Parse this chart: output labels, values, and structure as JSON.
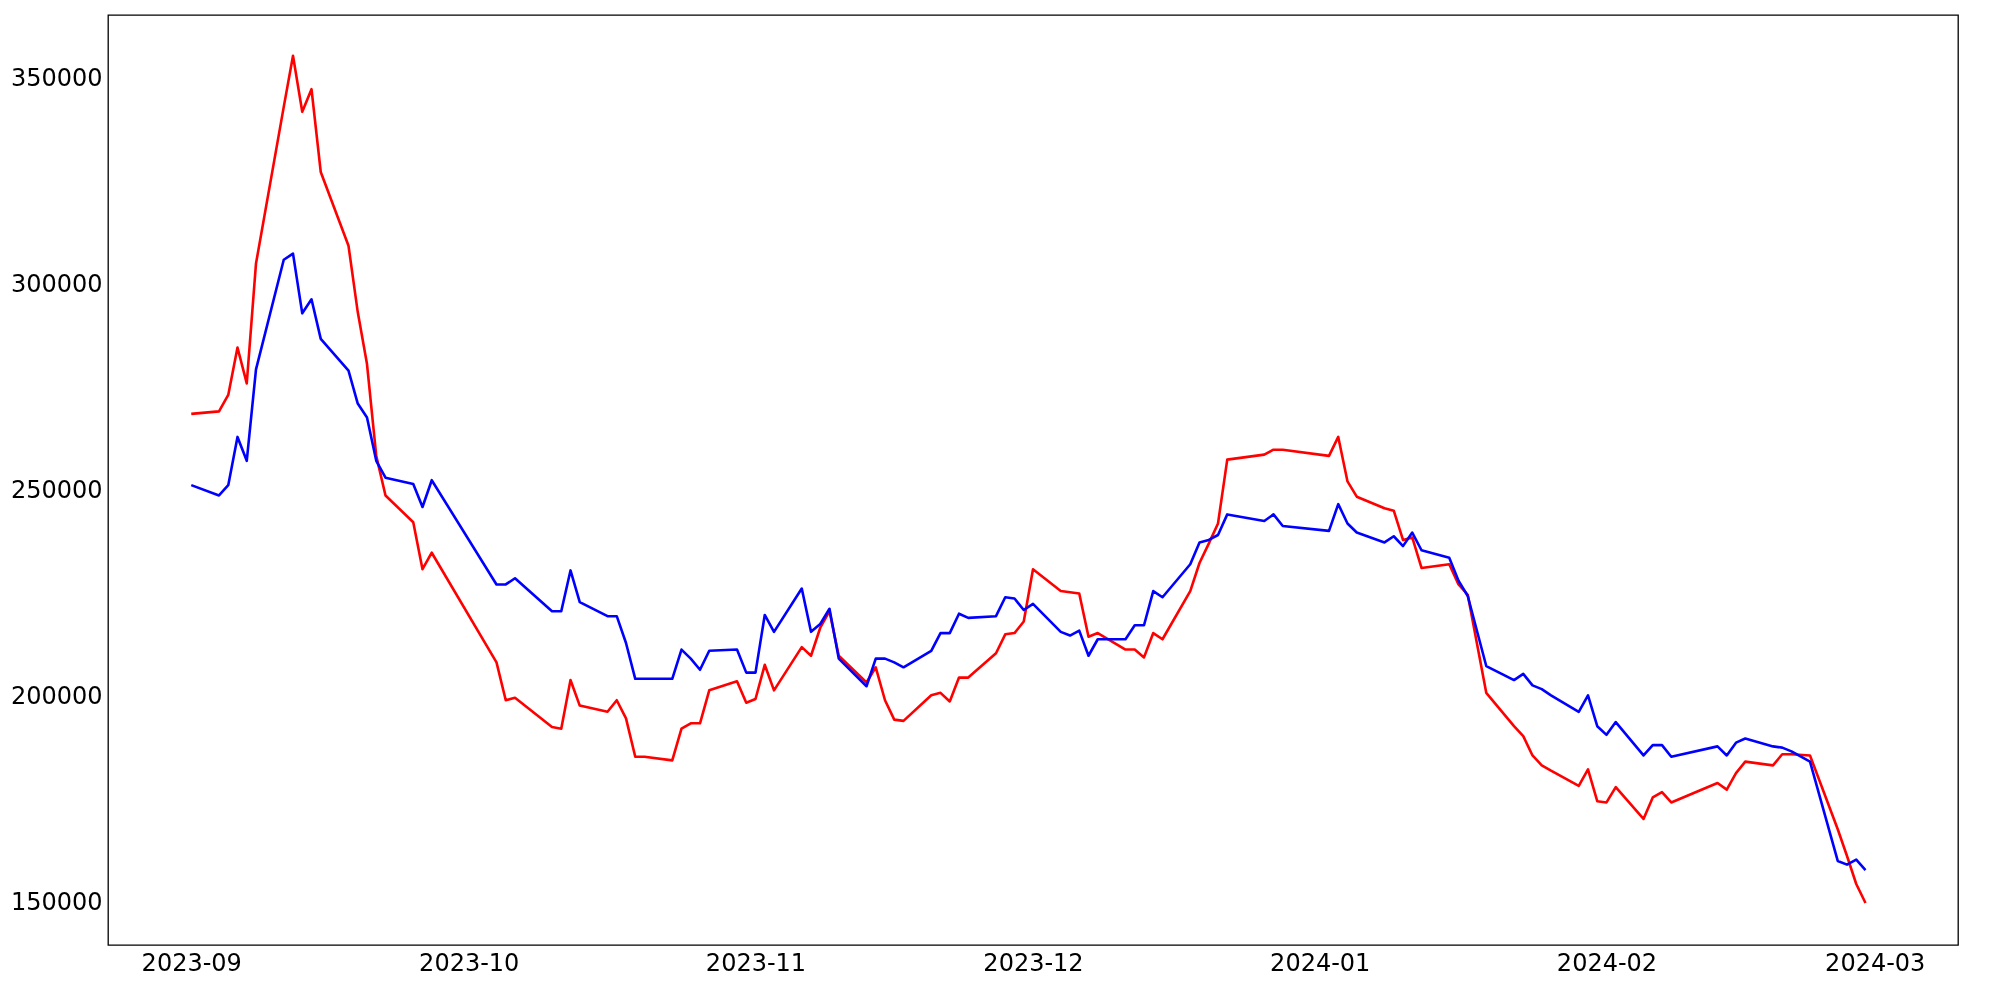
{
  "chart_data": {
    "type": "line",
    "x": [
      "2023-09-01",
      "2023-09-04",
      "2023-09-05",
      "2023-09-06",
      "2023-09-07",
      "2023-09-08",
      "2023-09-11",
      "2023-09-12",
      "2023-09-13",
      "2023-09-14",
      "2023-09-15",
      "2023-09-18",
      "2023-09-19",
      "2023-09-20",
      "2023-09-21",
      "2023-09-22",
      "2023-09-25",
      "2023-09-26",
      "2023-09-27",
      "2023-10-04",
      "2023-10-05",
      "2023-10-06",
      "2023-10-10",
      "2023-10-11",
      "2023-10-12",
      "2023-10-13",
      "2023-10-16",
      "2023-10-17",
      "2023-10-18",
      "2023-10-19",
      "2023-10-20",
      "2023-10-23",
      "2023-10-24",
      "2023-10-25",
      "2023-10-26",
      "2023-10-27",
      "2023-10-30",
      "2023-10-31",
      "2023-11-01",
      "2023-11-02",
      "2023-11-03",
      "2023-11-06",
      "2023-11-07",
      "2023-11-08",
      "2023-11-09",
      "2023-11-10",
      "2023-11-13",
      "2023-11-14",
      "2023-11-15",
      "2023-11-16",
      "2023-11-17",
      "2023-11-20",
      "2023-11-21",
      "2023-11-22",
      "2023-11-23",
      "2023-11-24",
      "2023-11-27",
      "2023-11-28",
      "2023-11-29",
      "2023-11-30",
      "2023-12-01",
      "2023-12-04",
      "2023-12-05",
      "2023-12-06",
      "2023-12-07",
      "2023-12-08",
      "2023-12-11",
      "2023-12-12",
      "2023-12-13",
      "2023-12-14",
      "2023-12-15",
      "2023-12-18",
      "2023-12-19",
      "2023-12-20",
      "2023-12-21",
      "2023-12-22",
      "2023-12-26",
      "2023-12-27",
      "2023-12-28",
      "2024-01-02",
      "2024-01-03",
      "2024-01-04",
      "2024-01-05",
      "2024-01-08",
      "2024-01-09",
      "2024-01-10",
      "2024-01-11",
      "2024-01-12",
      "2024-01-15",
      "2024-01-16",
      "2024-01-17",
      "2024-01-19",
      "2024-01-22",
      "2024-01-23",
      "2024-01-24",
      "2024-01-25",
      "2024-01-26",
      "2024-01-29",
      "2024-01-30",
      "2024-01-31",
      "2024-02-01",
      "2024-02-02",
      "2024-02-05",
      "2024-02-06",
      "2024-02-07",
      "2024-02-08",
      "2024-02-13",
      "2024-02-14",
      "2024-02-15",
      "2024-02-16",
      "2024-02-19",
      "2024-02-20",
      "2024-02-21",
      "2024-02-23",
      "2024-02-26",
      "2024-02-27",
      "2024-02-28",
      "2024-02-29"
    ],
    "series": [
      {
        "color": "#ff0000",
        "values": [
          268700,
          269300,
          273300,
          284800,
          276100,
          305200,
          343200,
          355600,
          342000,
          347500,
          327400,
          309500,
          293400,
          280800,
          258500,
          248900,
          242400,
          231000,
          235000,
          208400,
          199200,
          199800,
          192700,
          192300,
          204100,
          197900,
          196400,
          199200,
          194800,
          185500,
          185500,
          184600,
          192300,
          193600,
          193600,
          201600,
          203800,
          198600,
          199500,
          207800,
          201600,
          212100,
          210000,
          216800,
          220800,
          210000,
          203500,
          207200,
          199200,
          194500,
          194200,
          200400,
          201000,
          198900,
          204700,
          204700,
          210600,
          215200,
          215500,
          218300,
          231000,
          225700,
          225400,
          225100,
          214600,
          215500,
          211500,
          211500,
          209600,
          215500,
          214000,
          225700,
          232500,
          237200,
          242100,
          257600,
          258800,
          260000,
          260000,
          258500,
          263100,
          252300,
          248600,
          245800,
          245200,
          238100,
          238700,
          231300,
          232200,
          227300,
          224800,
          201000,
          192900,
          190500,
          185800,
          183400,
          182100,
          178400,
          182400,
          174700,
          174400,
          178100,
          170400,
          175600,
          176900,
          174400,
          179100,
          177500,
          181500,
          184300,
          183400,
          186100,
          186100,
          185800,
          167900,
          161400,
          154600,
          150000
        ]
      },
      {
        "color": "#0000ff",
        "values": [
          251400,
          248900,
          251400,
          263100,
          257300,
          279500,
          306100,
          307600,
          293100,
          296500,
          286900,
          279200,
          271200,
          267800,
          257300,
          253200,
          251700,
          246100,
          252600,
          227300,
          227300,
          228800,
          220800,
          220800,
          230700,
          223000,
          219600,
          219600,
          213100,
          204400,
          204400,
          204400,
          211500,
          209300,
          206600,
          211200,
          211500,
          205900,
          205900,
          219900,
          215800,
          226300,
          215800,
          217700,
          221400,
          209300,
          202600,
          209300,
          209300,
          208400,
          207200,
          211200,
          215500,
          215500,
          220200,
          219200,
          219600,
          224200,
          223900,
          221100,
          222600,
          215800,
          214900,
          216100,
          210000,
          214000,
          214000,
          217400,
          217400,
          225700,
          224200,
          232200,
          237500,
          238100,
          239300,
          244300,
          242700,
          244300,
          241500,
          240300,
          246800,
          242100,
          239900,
          237500,
          239000,
          236600,
          239900,
          235600,
          233800,
          228200,
          224500,
          207500,
          204100,
          205600,
          202800,
          201900,
          200400,
          196400,
          200400,
          192900,
          190800,
          193900,
          185800,
          188300,
          188300,
          185500,
          188000,
          185800,
          188900,
          189900,
          188000,
          187700,
          186800,
          184300,
          160200,
          159300,
          160500,
          158000
        ]
      }
    ],
    "xlim": [
      "2023-08-23",
      "2024-03-10"
    ],
    "xticks": [
      {
        "value": "2023-09-01",
        "label": "2023-09"
      },
      {
        "value": "2023-10-01",
        "label": "2023-10"
      },
      {
        "value": "2023-11-01",
        "label": "2023-11"
      },
      {
        "value": "2023-12-01",
        "label": "2023-12"
      },
      {
        "value": "2024-01-01",
        "label": "2024-01"
      },
      {
        "value": "2024-02-01",
        "label": "2024-02"
      },
      {
        "value": "2024-03-01",
        "label": "2024-03"
      }
    ],
    "ylim": [
      139800,
      365500
    ],
    "yticks": [
      150000,
      200000,
      250000,
      300000,
      350000
    ],
    "grid": false,
    "line_style": "solid",
    "marker": "none"
  }
}
